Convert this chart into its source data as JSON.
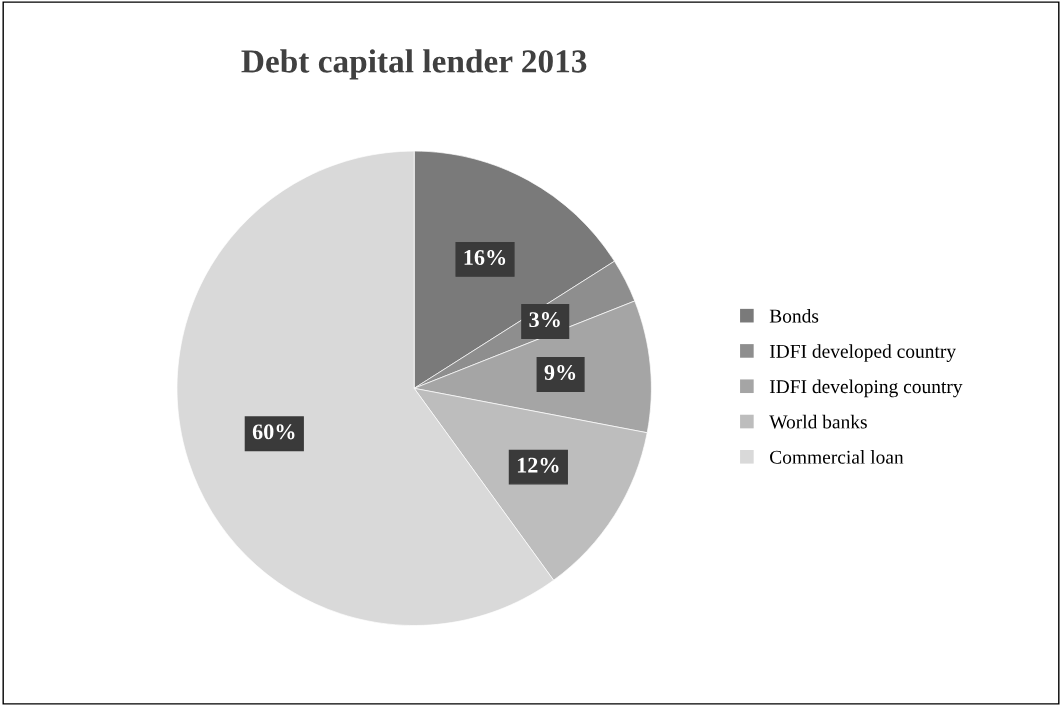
{
  "chart_data": {
    "type": "pie",
    "title": "Debt capital lender 2013",
    "categories": [
      "Bonds",
      "IDFI developed country",
      "IDFI developing country",
      "World banks",
      "Commercial loan"
    ],
    "values": [
      16,
      3,
      9,
      12,
      60
    ],
    "colors": [
      "#7a7a7a",
      "#8e8e8e",
      "#a5a5a5",
      "#bdbdbd",
      "#d9d9d9"
    ],
    "value_labels": [
      "16%",
      "3%",
      "9%",
      "12%",
      "60%"
    ],
    "legend": "right"
  }
}
